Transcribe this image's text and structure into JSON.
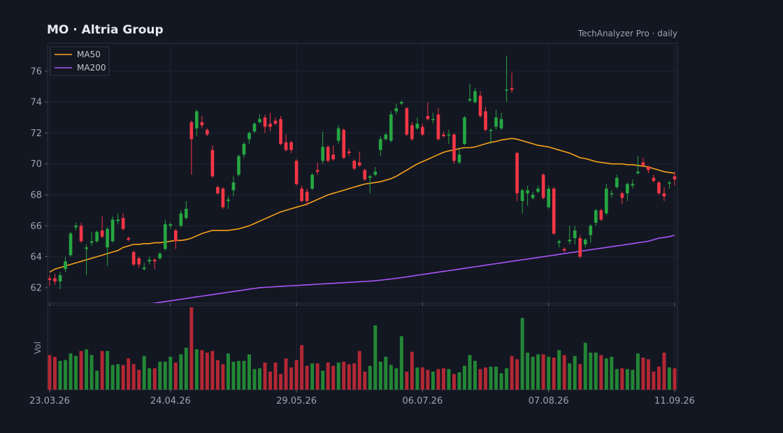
{
  "header": {
    "title": "MO  ·  Altria Group",
    "source": "TechAnalyzer Pro · daily"
  },
  "colors": {
    "background": "#131722",
    "up": "#26a641",
    "down": "#f23645",
    "ma50": "#f7a21b",
    "ma200": "#a855f7",
    "grid": "#1f2433",
    "axis": "#9aa3b2"
  },
  "chart_data": {
    "type": "candlestick",
    "title": "MO  ·  Altria Group",
    "ylim": [
      61,
      77.8
    ],
    "y_ticks": [
      62,
      64,
      66,
      68,
      70,
      72,
      74,
      76
    ],
    "x_tick_labels": [
      {
        "index": 0,
        "label": "23.03.26"
      },
      {
        "index": 23,
        "label": "24.04.26"
      },
      {
        "index": 47,
        "label": "29.05.26"
      },
      {
        "index": 71,
        "label": "06.07.26"
      },
      {
        "index": 95,
        "label": "07.08.26"
      },
      {
        "index": 119,
        "label": "11.09.26"
      }
    ],
    "grid": true,
    "legend": {
      "placement": "top-left",
      "entries": [
        "MA50",
        "MA200"
      ]
    },
    "volume_label": "Vol",
    "candles": [
      [
        62.6,
        62.5,
        62.1,
        62.8
      ],
      [
        62.6,
        62.4,
        62.2,
        62.9
      ],
      [
        62.4,
        62.8,
        61.9,
        63.0
      ],
      [
        63.2,
        63.7,
        63.0,
        64.0
      ],
      [
        64.1,
        65.5,
        64.0,
        65.6
      ],
      [
        65.9,
        66.0,
        65.7,
        66.2
      ],
      [
        66.0,
        65.0,
        64.9,
        66.2
      ],
      [
        64.5,
        64.6,
        62.8,
        64.8
      ],
      [
        64.9,
        65.0,
        64.7,
        65.6
      ],
      [
        65.0,
        65.6,
        64.9,
        65.7
      ],
      [
        65.7,
        65.3,
        65.2,
        66.6
      ],
      [
        64.6,
        65.8,
        63.4,
        65.9
      ],
      [
        65.0,
        66.4,
        64.9,
        66.6
      ],
      [
        66.3,
        66.4,
        66.1,
        66.8
      ],
      [
        66.5,
        65.8,
        65.7,
        66.8
      ],
      [
        65.2,
        65.1,
        65.0,
        65.3
      ],
      [
        64.3,
        63.5,
        63.4,
        64.4
      ],
      [
        63.9,
        63.5,
        63.3,
        64.0
      ],
      [
        63.2,
        63.3,
        63.1,
        63.6
      ],
      [
        63.7,
        63.8,
        63.5,
        64.0
      ],
      [
        63.8,
        63.7,
        63.2,
        63.9
      ],
      [
        63.9,
        64.2,
        63.8,
        64.3
      ],
      [
        64.5,
        66.1,
        64.4,
        66.4
      ],
      [
        66.0,
        66.1,
        65.8,
        66.2
      ],
      [
        65.7,
        65.0,
        64.5,
        65.8
      ],
      [
        66.0,
        66.8,
        65.9,
        67.0
      ],
      [
        66.5,
        67.1,
        66.4,
        67.6
      ],
      [
        72.7,
        71.6,
        69.3,
        72.8
      ],
      [
        72.3,
        73.4,
        71.8,
        73.5
      ],
      [
        72.7,
        72.5,
        72.3,
        73.1
      ],
      [
        72.2,
        71.9,
        71.8,
        72.3
      ],
      [
        70.9,
        69.2,
        69.1,
        71.2
      ],
      [
        68.5,
        68.1,
        68.0,
        68.6
      ],
      [
        68.4,
        67.2,
        67.1,
        68.5
      ],
      [
        67.6,
        67.7,
        67.1,
        67.9
      ],
      [
        68.3,
        68.8,
        67.9,
        69.2
      ],
      [
        69.3,
        70.5,
        69.2,
        70.6
      ],
      [
        70.6,
        71.3,
        70.4,
        71.4
      ],
      [
        71.6,
        72.0,
        71.3,
        72.1
      ],
      [
        72.1,
        72.6,
        72.0,
        72.7
      ],
      [
        72.7,
        72.9,
        72.6,
        73.2
      ],
      [
        73.0,
        72.4,
        72.0,
        73.2
      ],
      [
        72.6,
        72.4,
        72.1,
        73.3
      ],
      [
        72.8,
        72.6,
        72.5,
        73.0
      ],
      [
        72.9,
        71.3,
        71.2,
        73.1
      ],
      [
        71.4,
        70.9,
        70.8,
        71.9
      ],
      [
        71.4,
        70.9,
        70.7,
        71.5
      ],
      [
        70.2,
        68.7,
        68.6,
        70.3
      ],
      [
        68.4,
        67.6,
        67.5,
        68.6
      ],
      [
        68.2,
        67.6,
        67.3,
        68.4
      ],
      [
        68.4,
        69.3,
        68.3,
        69.4
      ],
      [
        69.6,
        69.5,
        69.3,
        70.1
      ],
      [
        70.2,
        71.1,
        70.0,
        72.1
      ],
      [
        71.1,
        70.2,
        70.1,
        71.2
      ],
      [
        70.6,
        70.3,
        70.2,
        71.2
      ],
      [
        71.5,
        72.3,
        71.3,
        72.5
      ],
      [
        72.2,
        70.4,
        70.3,
        72.3
      ],
      [
        70.8,
        70.7,
        70.5,
        71.0
      ],
      [
        70.2,
        69.7,
        69.6,
        70.3
      ],
      [
        70.1,
        69.9,
        69.8,
        70.8
      ],
      [
        69.6,
        69.0,
        68.9,
        69.7
      ],
      [
        69.1,
        69.2,
        68.1,
        69.3
      ],
      [
        69.3,
        69.5,
        69.2,
        69.8
      ],
      [
        70.9,
        71.6,
        70.5,
        71.8
      ],
      [
        71.6,
        71.9,
        71.5,
        72.0
      ],
      [
        71.5,
        73.2,
        71.4,
        73.4
      ],
      [
        73.4,
        73.6,
        73.2,
        73.9
      ],
      [
        73.9,
        74.0,
        73.8,
        74.1
      ],
      [
        73.6,
        71.9,
        71.8,
        73.7
      ],
      [
        72.5,
        71.6,
        71.5,
        72.7
      ],
      [
        72.3,
        72.6,
        72.2,
        73.0
      ],
      [
        72.4,
        71.9,
        71.8,
        72.6
      ],
      [
        73.1,
        72.9,
        72.8,
        74.0
      ],
      [
        72.9,
        72.9,
        72.6,
        73.3
      ],
      [
        73.2,
        71.6,
        71.5,
        73.6
      ],
      [
        71.9,
        71.8,
        71.7,
        72.1
      ],
      [
        71.9,
        71.9,
        71.3,
        72.2
      ],
      [
        71.9,
        70.2,
        70.0,
        72.0
      ],
      [
        70.1,
        70.6,
        70.0,
        71.0
      ],
      [
        71.3,
        73.0,
        71.2,
        73.1
      ],
      [
        74.1,
        74.2,
        74.0,
        75.2
      ],
      [
        74.0,
        74.7,
        73.9,
        74.9
      ],
      [
        74.4,
        73.1,
        73.0,
        74.7
      ],
      [
        73.4,
        72.2,
        72.1,
        73.7
      ],
      [
        72.2,
        72.2,
        71.3,
        72.3
      ],
      [
        72.4,
        73.0,
        72.2,
        73.5
      ],
      [
        72.3,
        72.9,
        72.2,
        73.3
      ],
      [
        74.8,
        74.8,
        74.0,
        77.0
      ],
      [
        74.9,
        74.8,
        74.6,
        75.9
      ],
      [
        70.7,
        68.1,
        67.6,
        70.8
      ],
      [
        67.6,
        68.3,
        66.8,
        68.4
      ],
      [
        68.1,
        68.3,
        67.3,
        68.6
      ],
      [
        67.8,
        68.0,
        67.7,
        68.2
      ],
      [
        68.2,
        68.4,
        68.1,
        68.6
      ],
      [
        69.3,
        67.8,
        67.7,
        69.4
      ],
      [
        67.2,
        68.4,
        67.1,
        68.6
      ],
      [
        68.4,
        65.5,
        65.4,
        68.5
      ],
      [
        64.9,
        65.0,
        64.6,
        65.1
      ],
      [
        64.5,
        64.4,
        64.3,
        64.6
      ],
      [
        65.0,
        65.1,
        64.8,
        66.0
      ],
      [
        65.2,
        65.7,
        64.8,
        66.0
      ],
      [
        65.2,
        64.0,
        63.9,
        65.4
      ],
      [
        64.8,
        65.1,
        64.6,
        65.2
      ],
      [
        65.4,
        66.0,
        64.9,
        66.1
      ],
      [
        66.2,
        67.0,
        66.0,
        67.1
      ],
      [
        67.0,
        66.4,
        66.3,
        67.1
      ],
      [
        66.8,
        68.4,
        66.7,
        68.7
      ],
      [
        68.1,
        68.1,
        67.8,
        68.3
      ],
      [
        68.5,
        69.1,
        68.4,
        69.3
      ],
      [
        68.1,
        67.8,
        67.4,
        68.2
      ],
      [
        68.1,
        68.7,
        67.6,
        68.8
      ],
      [
        68.6,
        68.7,
        68.4,
        69.0
      ],
      [
        69.4,
        69.5,
        69.3,
        70.5
      ],
      [
        70.1,
        69.9,
        69.8,
        70.4
      ],
      [
        69.8,
        69.6,
        69.4,
        69.9
      ],
      [
        69.1,
        68.9,
        68.8,
        69.3
      ],
      [
        68.8,
        68.1,
        68.0,
        68.9
      ],
      [
        68.1,
        67.9,
        67.6,
        68.5
      ],
      [
        68.8,
        68.8,
        68.4,
        68.9
      ],
      [
        69.2,
        69.0,
        68.6,
        69.5
      ]
    ],
    "ma50": [
      63.0,
      63.2,
      63.3,
      63.4,
      63.5,
      63.6,
      63.7,
      63.8,
      63.9,
      64.0,
      64.1,
      64.2,
      64.3,
      64.4,
      64.6,
      64.7,
      64.8,
      64.8,
      64.85,
      64.85,
      64.9,
      64.9,
      64.95,
      65.0,
      65.05,
      65.05,
      65.1,
      65.2,
      65.35,
      65.5,
      65.6,
      65.7,
      65.7,
      65.7,
      65.7,
      65.75,
      65.8,
      65.9,
      66.0,
      66.15,
      66.3,
      66.45,
      66.6,
      66.75,
      66.9,
      67.0,
      67.1,
      67.2,
      67.3,
      67.4,
      67.55,
      67.7,
      67.85,
      68.0,
      68.1,
      68.2,
      68.3,
      68.4,
      68.5,
      68.6,
      68.7,
      68.75,
      68.8,
      68.85,
      68.95,
      69.05,
      69.2,
      69.4,
      69.6,
      69.8,
      70.0,
      70.15,
      70.3,
      70.45,
      70.6,
      70.75,
      70.85,
      70.9,
      71.0,
      71.05,
      71.05,
      71.1,
      71.2,
      71.3,
      71.4,
      71.45,
      71.55,
      71.6,
      71.65,
      71.6,
      71.5,
      71.4,
      71.3,
      71.2,
      71.15,
      71.1,
      71.0,
      70.9,
      70.8,
      70.7,
      70.55,
      70.4,
      70.35,
      70.25,
      70.15,
      70.1,
      70.05,
      70.0,
      70.0,
      70.0,
      69.95,
      69.95,
      69.9,
      69.85,
      69.8,
      69.7,
      69.6,
      69.5,
      69.45,
      69.4
    ],
    "ma200": [
      60.0,
      60.05,
      60.1,
      60.15,
      60.2,
      60.25,
      60.3,
      60.35,
      60.4,
      60.45,
      60.5,
      60.55,
      60.6,
      60.65,
      60.7,
      60.75,
      60.8,
      60.85,
      60.9,
      60.95,
      61.0,
      61.05,
      61.1,
      61.15,
      61.2,
      61.25,
      61.3,
      61.35,
      61.4,
      61.45,
      61.5,
      61.55,
      61.6,
      61.65,
      61.7,
      61.75,
      61.8,
      61.85,
      61.9,
      61.95,
      62.0,
      62.02,
      62.04,
      62.06,
      62.08,
      62.1,
      62.12,
      62.14,
      62.16,
      62.18,
      62.2,
      62.22,
      62.24,
      62.26,
      62.28,
      62.3,
      62.32,
      62.34,
      62.36,
      62.38,
      62.4,
      62.42,
      62.45,
      62.48,
      62.52,
      62.56,
      62.6,
      62.65,
      62.7,
      62.75,
      62.8,
      62.85,
      62.9,
      62.95,
      63.0,
      63.05,
      63.1,
      63.15,
      63.2,
      63.25,
      63.3,
      63.35,
      63.4,
      63.45,
      63.5,
      63.55,
      63.6,
      63.65,
      63.7,
      63.75,
      63.8,
      63.85,
      63.9,
      63.95,
      64.0,
      64.05,
      64.1,
      64.15,
      64.2,
      64.25,
      64.3,
      64.35,
      64.4,
      64.45,
      64.5,
      64.55,
      64.6,
      64.65,
      64.7,
      64.75,
      64.8,
      64.85,
      64.9,
      64.95,
      65.0,
      65.1,
      65.2,
      65.25,
      65.3,
      65.4
    ],
    "volume": [
      42,
      40,
      35,
      36,
      44,
      41,
      47,
      49,
      42,
      23,
      47,
      47,
      30,
      31,
      30,
      38,
      31,
      24,
      41,
      26,
      26,
      34,
      34,
      40,
      33,
      43,
      51,
      100,
      49,
      48,
      45,
      47,
      36,
      31,
      44,
      34,
      35,
      35,
      43,
      25,
      26,
      33,
      22,
      33,
      19,
      38,
      27,
      36,
      54,
      29,
      32,
      32,
      23,
      33,
      29,
      33,
      34,
      31,
      32,
      47,
      22,
      29,
      78,
      34,
      40,
      30,
      26,
      65,
      22,
      46,
      27,
      27,
      24,
      22,
      25,
      26,
      25,
      19,
      21,
      29,
      42,
      35,
      25,
      27,
      28,
      28,
      20,
      26,
      41,
      37,
      87,
      45,
      40,
      43,
      43,
      40,
      39,
      48,
      42,
      32,
      41,
      31,
      57,
      45,
      45,
      42,
      38,
      40,
      25,
      26,
      25,
      24,
      44,
      39,
      37,
      22,
      28,
      45,
      27,
      26
    ]
  }
}
